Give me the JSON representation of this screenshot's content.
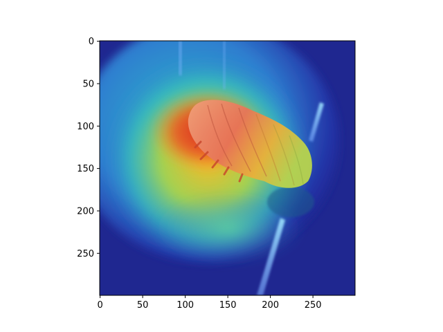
{
  "figure": {
    "x_ticks": [
      "0",
      "50",
      "100",
      "150",
      "200",
      "250"
    ],
    "y_ticks": [
      "0",
      "50",
      "100",
      "150",
      "200",
      "250"
    ],
    "x_tick_values": [
      0,
      50,
      100,
      150,
      200,
      250
    ],
    "y_tick_values": [
      0,
      50,
      100,
      150,
      200,
      250
    ],
    "image_extent": [
      0,
      299,
      299,
      0
    ],
    "colors": {
      "background": "#ffffff",
      "axis": "#000000",
      "overlay_low": "#1a2aa8",
      "overlay_mid": "#3cc2b4",
      "overlay_high": "#e1392a"
    }
  }
}
